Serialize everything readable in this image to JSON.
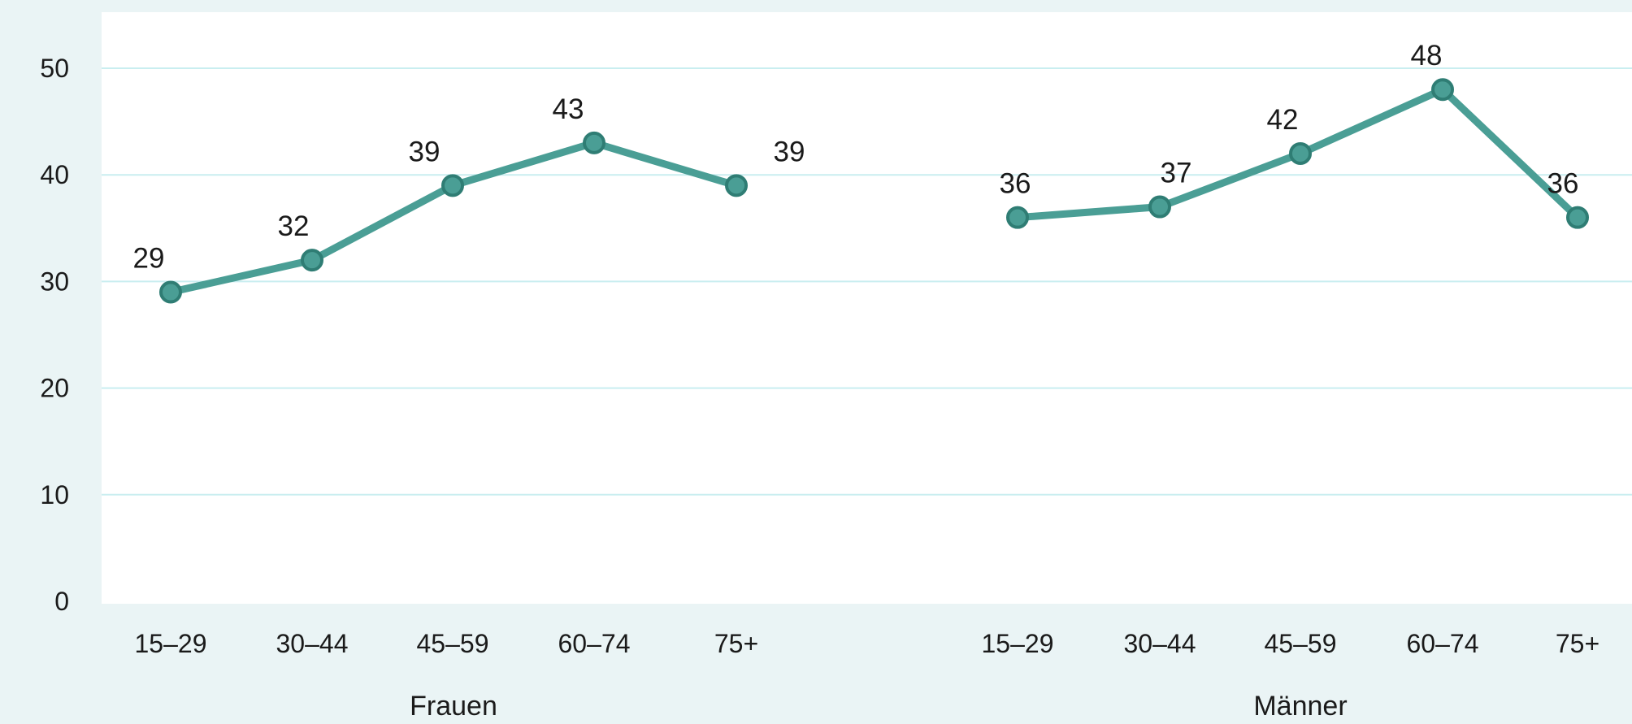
{
  "chart_data": {
    "type": "line",
    "groups": [
      {
        "label": "Frauen",
        "categories": [
          "15–29",
          "30–44",
          "45–59",
          "60–74",
          "75+"
        ],
        "values": [
          29,
          32,
          39,
          43,
          39
        ],
        "value_labels": [
          "29",
          "32",
          "39",
          "43",
          "39"
        ]
      },
      {
        "label": "Männer",
        "categories": [
          "15–29",
          "30–44",
          "45–59",
          "60–74",
          "75+"
        ],
        "values": [
          36,
          37,
          42,
          48,
          36
        ],
        "value_labels": [
          "36",
          "37",
          "42",
          "48",
          "36"
        ]
      }
    ],
    "y_ticks": [
      "0",
      "10",
      "20",
      "30",
      "40",
      "50"
    ],
    "ylim": [
      0,
      55
    ],
    "grid": true,
    "legend": "none",
    "colors": {
      "line": "#4a9e95",
      "marker_fill": "#4a9e95",
      "marker_stroke": "#2f7d74",
      "grid": "#c9eef0",
      "plot_background": "#ffffff",
      "page_background": "#eaf4f5"
    }
  }
}
